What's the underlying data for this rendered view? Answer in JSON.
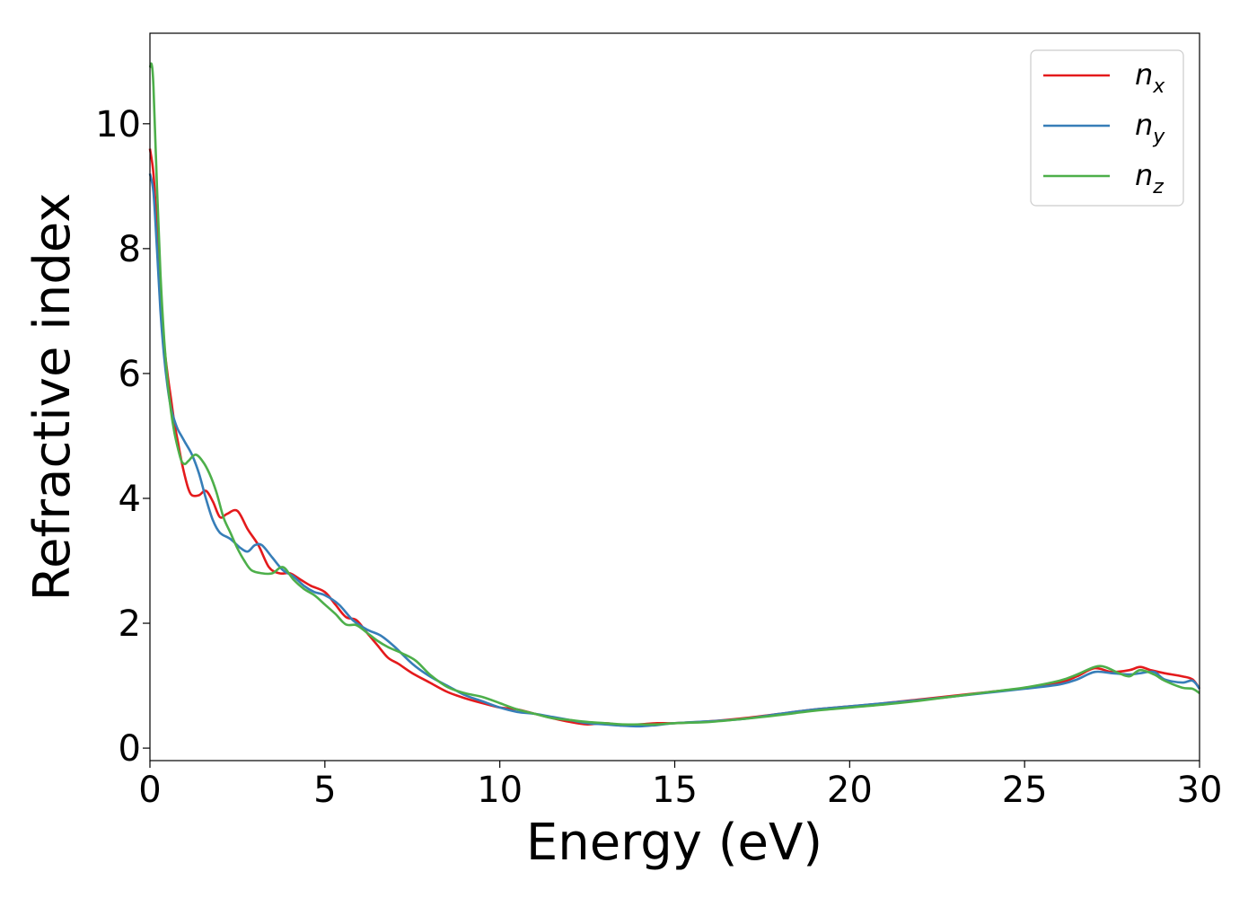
{
  "chart_data": {
    "type": "line",
    "xlabel": "Energy (eV)",
    "ylabel": "Refractive index",
    "xlim": [
      0,
      30
    ],
    "ylim": [
      -0.2,
      11.45
    ],
    "xticks": [
      "0",
      "5",
      "10",
      "15",
      "20",
      "25",
      "30"
    ],
    "yticks": [
      "0",
      "2",
      "4",
      "6",
      "8",
      "10"
    ],
    "grid": false,
    "legend_position": "top-right",
    "series": [
      {
        "name": "n",
        "subscript": "x",
        "color": "#e41a1c",
        "x": [
          0,
          0.1,
          0.2,
          0.3,
          0.4,
          0.5,
          0.6,
          0.7,
          0.8,
          0.9,
          1.0,
          1.1,
          1.2,
          1.4,
          1.6,
          1.8,
          2.0,
          2.2,
          2.5,
          2.8,
          3.1,
          3.4,
          3.7,
          4.0,
          4.3,
          4.6,
          5.0,
          5.3,
          5.6,
          5.9,
          6.2,
          6.5,
          6.8,
          7.1,
          7.5,
          8.0,
          8.5,
          9.0,
          9.5,
          10.0,
          10.5,
          11.0,
          11.5,
          12.0,
          12.5,
          13.0,
          13.5,
          14.0,
          14.5,
          15.0,
          16.0,
          17.0,
          18.0,
          19.0,
          20.0,
          21.0,
          22.0,
          23.0,
          24.0,
          25.0,
          26.0,
          26.5,
          27.0,
          27.5,
          28.0,
          28.3,
          28.6,
          29.0,
          29.5,
          29.8,
          30.0
        ],
        "values": [
          9.6,
          9.2,
          8.3,
          7.3,
          6.5,
          6.0,
          5.6,
          5.2,
          4.9,
          4.6,
          4.35,
          4.15,
          4.05,
          4.05,
          4.12,
          3.95,
          3.7,
          3.75,
          3.8,
          3.5,
          3.25,
          2.9,
          2.8,
          2.8,
          2.7,
          2.6,
          2.5,
          2.3,
          2.1,
          2.05,
          1.85,
          1.65,
          1.45,
          1.35,
          1.2,
          1.05,
          0.9,
          0.8,
          0.72,
          0.65,
          0.62,
          0.55,
          0.48,
          0.42,
          0.38,
          0.4,
          0.37,
          0.38,
          0.4,
          0.4,
          0.43,
          0.48,
          0.55,
          0.62,
          0.67,
          0.72,
          0.78,
          0.84,
          0.9,
          0.96,
          1.05,
          1.15,
          1.28,
          1.22,
          1.25,
          1.3,
          1.25,
          1.2,
          1.15,
          1.1,
          0.95
        ]
      },
      {
        "name": "n",
        "subscript": "y",
        "color": "#377eb8",
        "x": [
          0,
          0.1,
          0.2,
          0.3,
          0.4,
          0.5,
          0.6,
          0.7,
          0.8,
          0.9,
          1.0,
          1.2,
          1.4,
          1.6,
          1.8,
          2.0,
          2.3,
          2.6,
          2.8,
          3.0,
          3.2,
          3.5,
          3.8,
          4.1,
          4.4,
          4.7,
          5.0,
          5.4,
          5.8,
          6.2,
          6.6,
          7.0,
          7.5,
          8.0,
          8.5,
          9.0,
          9.5,
          10.0,
          10.5,
          11.0,
          11.5,
          12.0,
          12.5,
          13.0,
          13.5,
          14.0,
          14.5,
          15.0,
          16.0,
          17.0,
          18.0,
          19.0,
          20.0,
          21.0,
          22.0,
          23.0,
          24.0,
          25.0,
          26.0,
          26.5,
          27.0,
          27.5,
          28.0,
          28.3,
          28.7,
          29.0,
          29.5,
          29.8,
          30.0
        ],
        "values": [
          9.2,
          8.9,
          8.0,
          7.0,
          6.3,
          5.8,
          5.45,
          5.25,
          5.1,
          5.0,
          4.9,
          4.7,
          4.4,
          4.0,
          3.65,
          3.45,
          3.35,
          3.2,
          3.15,
          3.25,
          3.25,
          3.05,
          2.85,
          2.75,
          2.6,
          2.5,
          2.45,
          2.3,
          2.05,
          1.9,
          1.8,
          1.62,
          1.35,
          1.15,
          1.0,
          0.85,
          0.75,
          0.65,
          0.58,
          0.55,
          0.5,
          0.45,
          0.4,
          0.38,
          0.36,
          0.35,
          0.37,
          0.4,
          0.43,
          0.47,
          0.55,
          0.62,
          0.67,
          0.72,
          0.77,
          0.83,
          0.89,
          0.95,
          1.02,
          1.1,
          1.22,
          1.2,
          1.18,
          1.2,
          1.22,
          1.1,
          1.05,
          1.08,
          0.95
        ]
      },
      {
        "name": "n",
        "subscript": "z",
        "color": "#4daf4a",
        "x": [
          0,
          0.05,
          0.1,
          0.2,
          0.3,
          0.4,
          0.5,
          0.6,
          0.7,
          0.8,
          0.9,
          1.0,
          1.1,
          1.3,
          1.5,
          1.7,
          1.9,
          2.1,
          2.3,
          2.5,
          2.7,
          2.9,
          3.2,
          3.5,
          3.8,
          4.1,
          4.4,
          4.7,
          5.0,
          5.3,
          5.6,
          5.9,
          6.2,
          6.5,
          6.8,
          7.2,
          7.6,
          8.0,
          8.5,
          9.0,
          9.5,
          10.0,
          10.5,
          11.0,
          11.5,
          12.0,
          12.5,
          13.0,
          13.5,
          14.0,
          14.5,
          15.0,
          16.0,
          17.0,
          18.0,
          19.0,
          20.0,
          21.0,
          22.0,
          23.0,
          24.0,
          25.0,
          26.0,
          26.5,
          27.0,
          27.3,
          27.7,
          28.0,
          28.3,
          28.7,
          29.0,
          29.5,
          29.8,
          30.0
        ],
        "values": [
          10.9,
          10.95,
          10.6,
          9.0,
          7.6,
          6.6,
          5.9,
          5.4,
          5.05,
          4.8,
          4.6,
          4.55,
          4.6,
          4.7,
          4.6,
          4.4,
          4.1,
          3.7,
          3.45,
          3.2,
          3.0,
          2.85,
          2.8,
          2.8,
          2.9,
          2.7,
          2.55,
          2.45,
          2.3,
          2.15,
          1.98,
          1.97,
          1.85,
          1.72,
          1.62,
          1.52,
          1.4,
          1.18,
          0.98,
          0.88,
          0.82,
          0.72,
          0.62,
          0.55,
          0.48,
          0.45,
          0.42,
          0.4,
          0.38,
          0.38,
          0.38,
          0.4,
          0.42,
          0.47,
          0.53,
          0.6,
          0.65,
          0.7,
          0.76,
          0.83,
          0.9,
          0.97,
          1.08,
          1.18,
          1.3,
          1.3,
          1.2,
          1.15,
          1.25,
          1.18,
          1.08,
          0.97,
          0.95,
          0.88
        ]
      }
    ]
  }
}
